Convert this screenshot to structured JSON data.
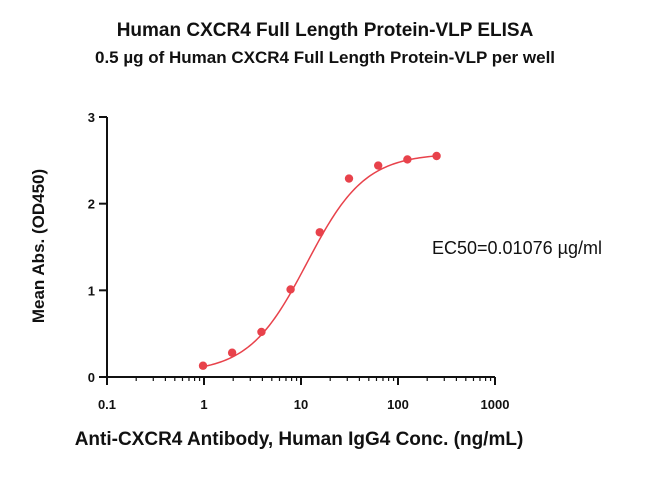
{
  "chart_data": {
    "type": "scatter",
    "title": "Human CXCR4 Full Length Protein-VLP ELISA",
    "subtitle": "0.5 µg of Human CXCR4 Full Length Protein-VLP per well",
    "xlabel": "Anti-CXCR4 Antibody, Human IgG4 Conc. (ng/mL)",
    "ylabel": "Mean Abs. (OD450)",
    "x_scale": "log",
    "xlim": [
      0.1,
      1000
    ],
    "ylim": [
      0,
      3
    ],
    "x_ticks": [
      "0.1",
      "1",
      "10",
      "100",
      "1000"
    ],
    "y_ticks": [
      "0",
      "1",
      "2",
      "3"
    ],
    "grid": false,
    "annotation": "EC50=0.01076 µg/ml",
    "series": [
      {
        "x": [
          0.977,
          1.95,
          3.91,
          7.81,
          15.6,
          31.25,
          62.5,
          125,
          250
        ],
        "y": [
          0.13,
          0.28,
          0.52,
          1.01,
          1.67,
          2.29,
          2.44,
          2.51,
          2.55
        ],
        "fit_curve": true
      }
    ],
    "colors": {
      "series": "#e8424b",
      "axis": "#111111"
    }
  }
}
